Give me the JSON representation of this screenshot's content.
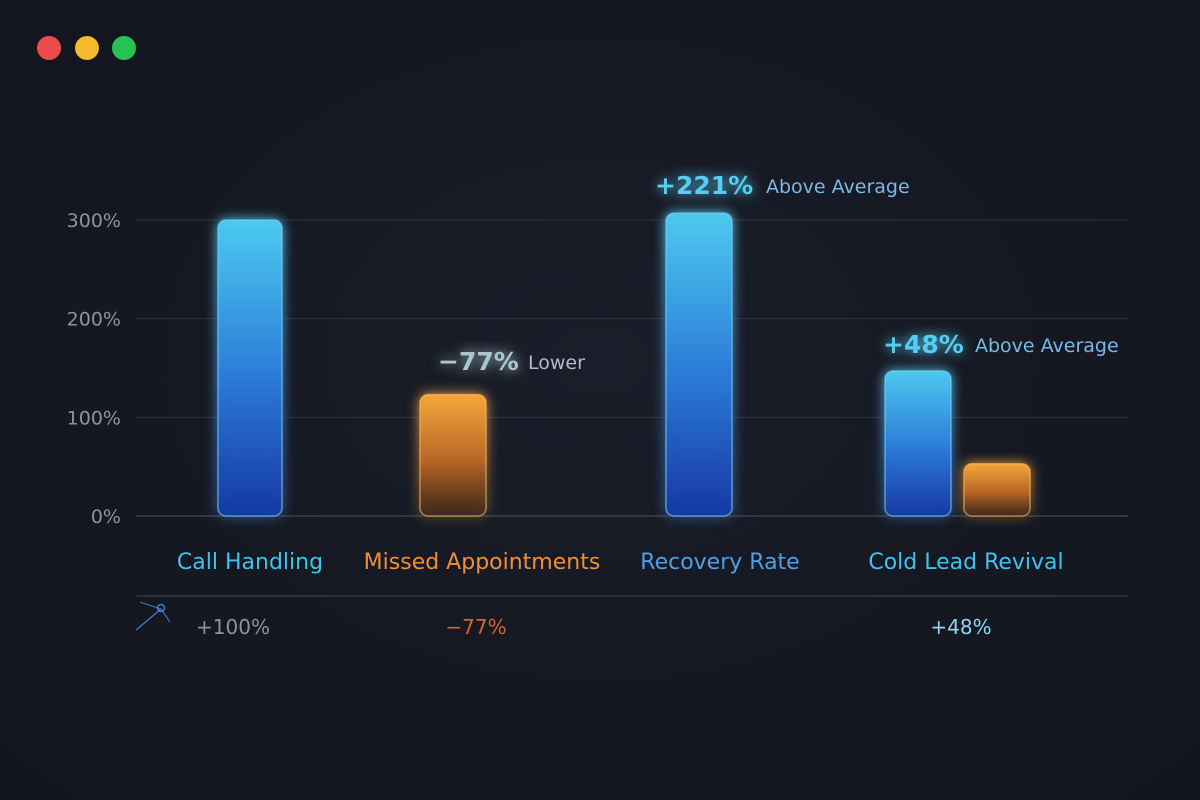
{
  "window": {
    "controls": [
      {
        "name": "close",
        "color": "#ec4b4b"
      },
      {
        "name": "minimize",
        "color": "#f3bb2c"
      },
      {
        "name": "maximize",
        "color": "#27c251"
      }
    ]
  },
  "colors": {
    "blue_top": "#4cc9f0",
    "blue_bottom": "#1638a8",
    "orange_top": "#f6a53a",
    "orange_bottom": "#3a2418",
    "cat_cyan": "#3fc3ee",
    "cat_orange": "#f08d3a",
    "cat_blue": "#4f9ee8",
    "tick_text": "#8c93a3",
    "grid": "#2c3140",
    "ann_cyan": "#56cdf2",
    "ann_label": "#79b9ea",
    "ann_grey": "#b3bac8",
    "foot_grey": "#8c93a3",
    "foot_orange": "#d8622f",
    "foot_cyan": "#8fd6f2"
  },
  "chart_data": {
    "type": "bar",
    "ylim": [
      0,
      300
    ],
    "yticks": [
      "0%",
      "100%",
      "200%",
      "300%"
    ],
    "ytick_values": [
      0,
      100,
      200,
      300
    ],
    "grid": true,
    "categories": [
      "Call Handling",
      "Missed Appointments",
      "Recovery Rate",
      "Cold Lead Revival"
    ],
    "bars": [
      {
        "category": "Call Handling",
        "value": 300,
        "color": "blue"
      },
      {
        "category": "Missed Appointments",
        "value": 123,
        "color": "orange"
      },
      {
        "category": "Recovery Rate",
        "value": 307,
        "color": "blue"
      },
      {
        "category": "Cold Lead Revival",
        "value": 147,
        "color": "blue"
      },
      {
        "category": "Cold Lead Revival",
        "value": 53,
        "color": "orange"
      }
    ],
    "annotations": [
      {
        "value": "−77%",
        "label": "Lower",
        "style": "grey",
        "category": "Missed Appointments"
      },
      {
        "value": "+221%",
        "label": "Above Average",
        "style": "cyan",
        "category": "Recovery Rate"
      },
      {
        "value": "+48%",
        "label": "Above Average",
        "style": "cyan",
        "category": "Cold Lead Revival"
      }
    ],
    "footer_values": [
      {
        "category": "Call Handling",
        "text": "+100%",
        "style": "grey"
      },
      {
        "category": "Missed Appointments",
        "text": "−77%",
        "style": "orange"
      },
      {
        "category": "Cold Lead Revival",
        "text": "+48%",
        "style": "cyan"
      }
    ]
  }
}
